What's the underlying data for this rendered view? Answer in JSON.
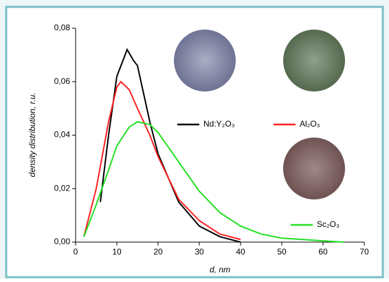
{
  "chart_data": {
    "type": "line",
    "xlabel": "d, nm",
    "ylabel": "density distribution, r.u.",
    "xlim": [
      0,
      70
    ],
    "xticks": [
      0,
      10,
      20,
      30,
      40,
      50,
      60,
      70
    ],
    "ylim": [
      0,
      0.08
    ],
    "yticks": [
      {
        "value": 0,
        "label": "0,00"
      },
      {
        "value": 0.02,
        "label": "0,02"
      },
      {
        "value": 0.04,
        "label": "0,04"
      },
      {
        "value": 0.06,
        "label": "0,06"
      },
      {
        "value": 0.08,
        "label": "0,08"
      }
    ],
    "series": [
      {
        "name": "Nd:Y₂O₃",
        "color": "#000000",
        "x": [
          6,
          8,
          10,
          12.5,
          14,
          15,
          18,
          20,
          25,
          30,
          35,
          40
        ],
        "values": [
          0.015,
          0.04,
          0.062,
          0.072,
          0.068,
          0.066,
          0.045,
          0.033,
          0.015,
          0.006,
          0.002,
          0.0
        ]
      },
      {
        "name": "Al₂O₃",
        "color": "#ff2020",
        "x": [
          2,
          5,
          8,
          10,
          11,
          13,
          15,
          18,
          20,
          25,
          30,
          35,
          40
        ],
        "values": [
          0.002,
          0.02,
          0.045,
          0.058,
          0.06,
          0.057,
          0.05,
          0.04,
          0.032,
          0.016,
          0.008,
          0.003,
          0.001
        ]
      },
      {
        "name": "Sc₂O₃",
        "color": "#22e022",
        "x": [
          2,
          5,
          8,
          10,
          13,
          15,
          18,
          20,
          25,
          30,
          35,
          40,
          45,
          50,
          60,
          65
        ],
        "values": [
          0.002,
          0.014,
          0.027,
          0.036,
          0.043,
          0.045,
          0.044,
          0.041,
          0.03,
          0.019,
          0.011,
          0.006,
          0.003,
          0.0015,
          0.0005,
          0.0
        ]
      }
    ]
  }
}
